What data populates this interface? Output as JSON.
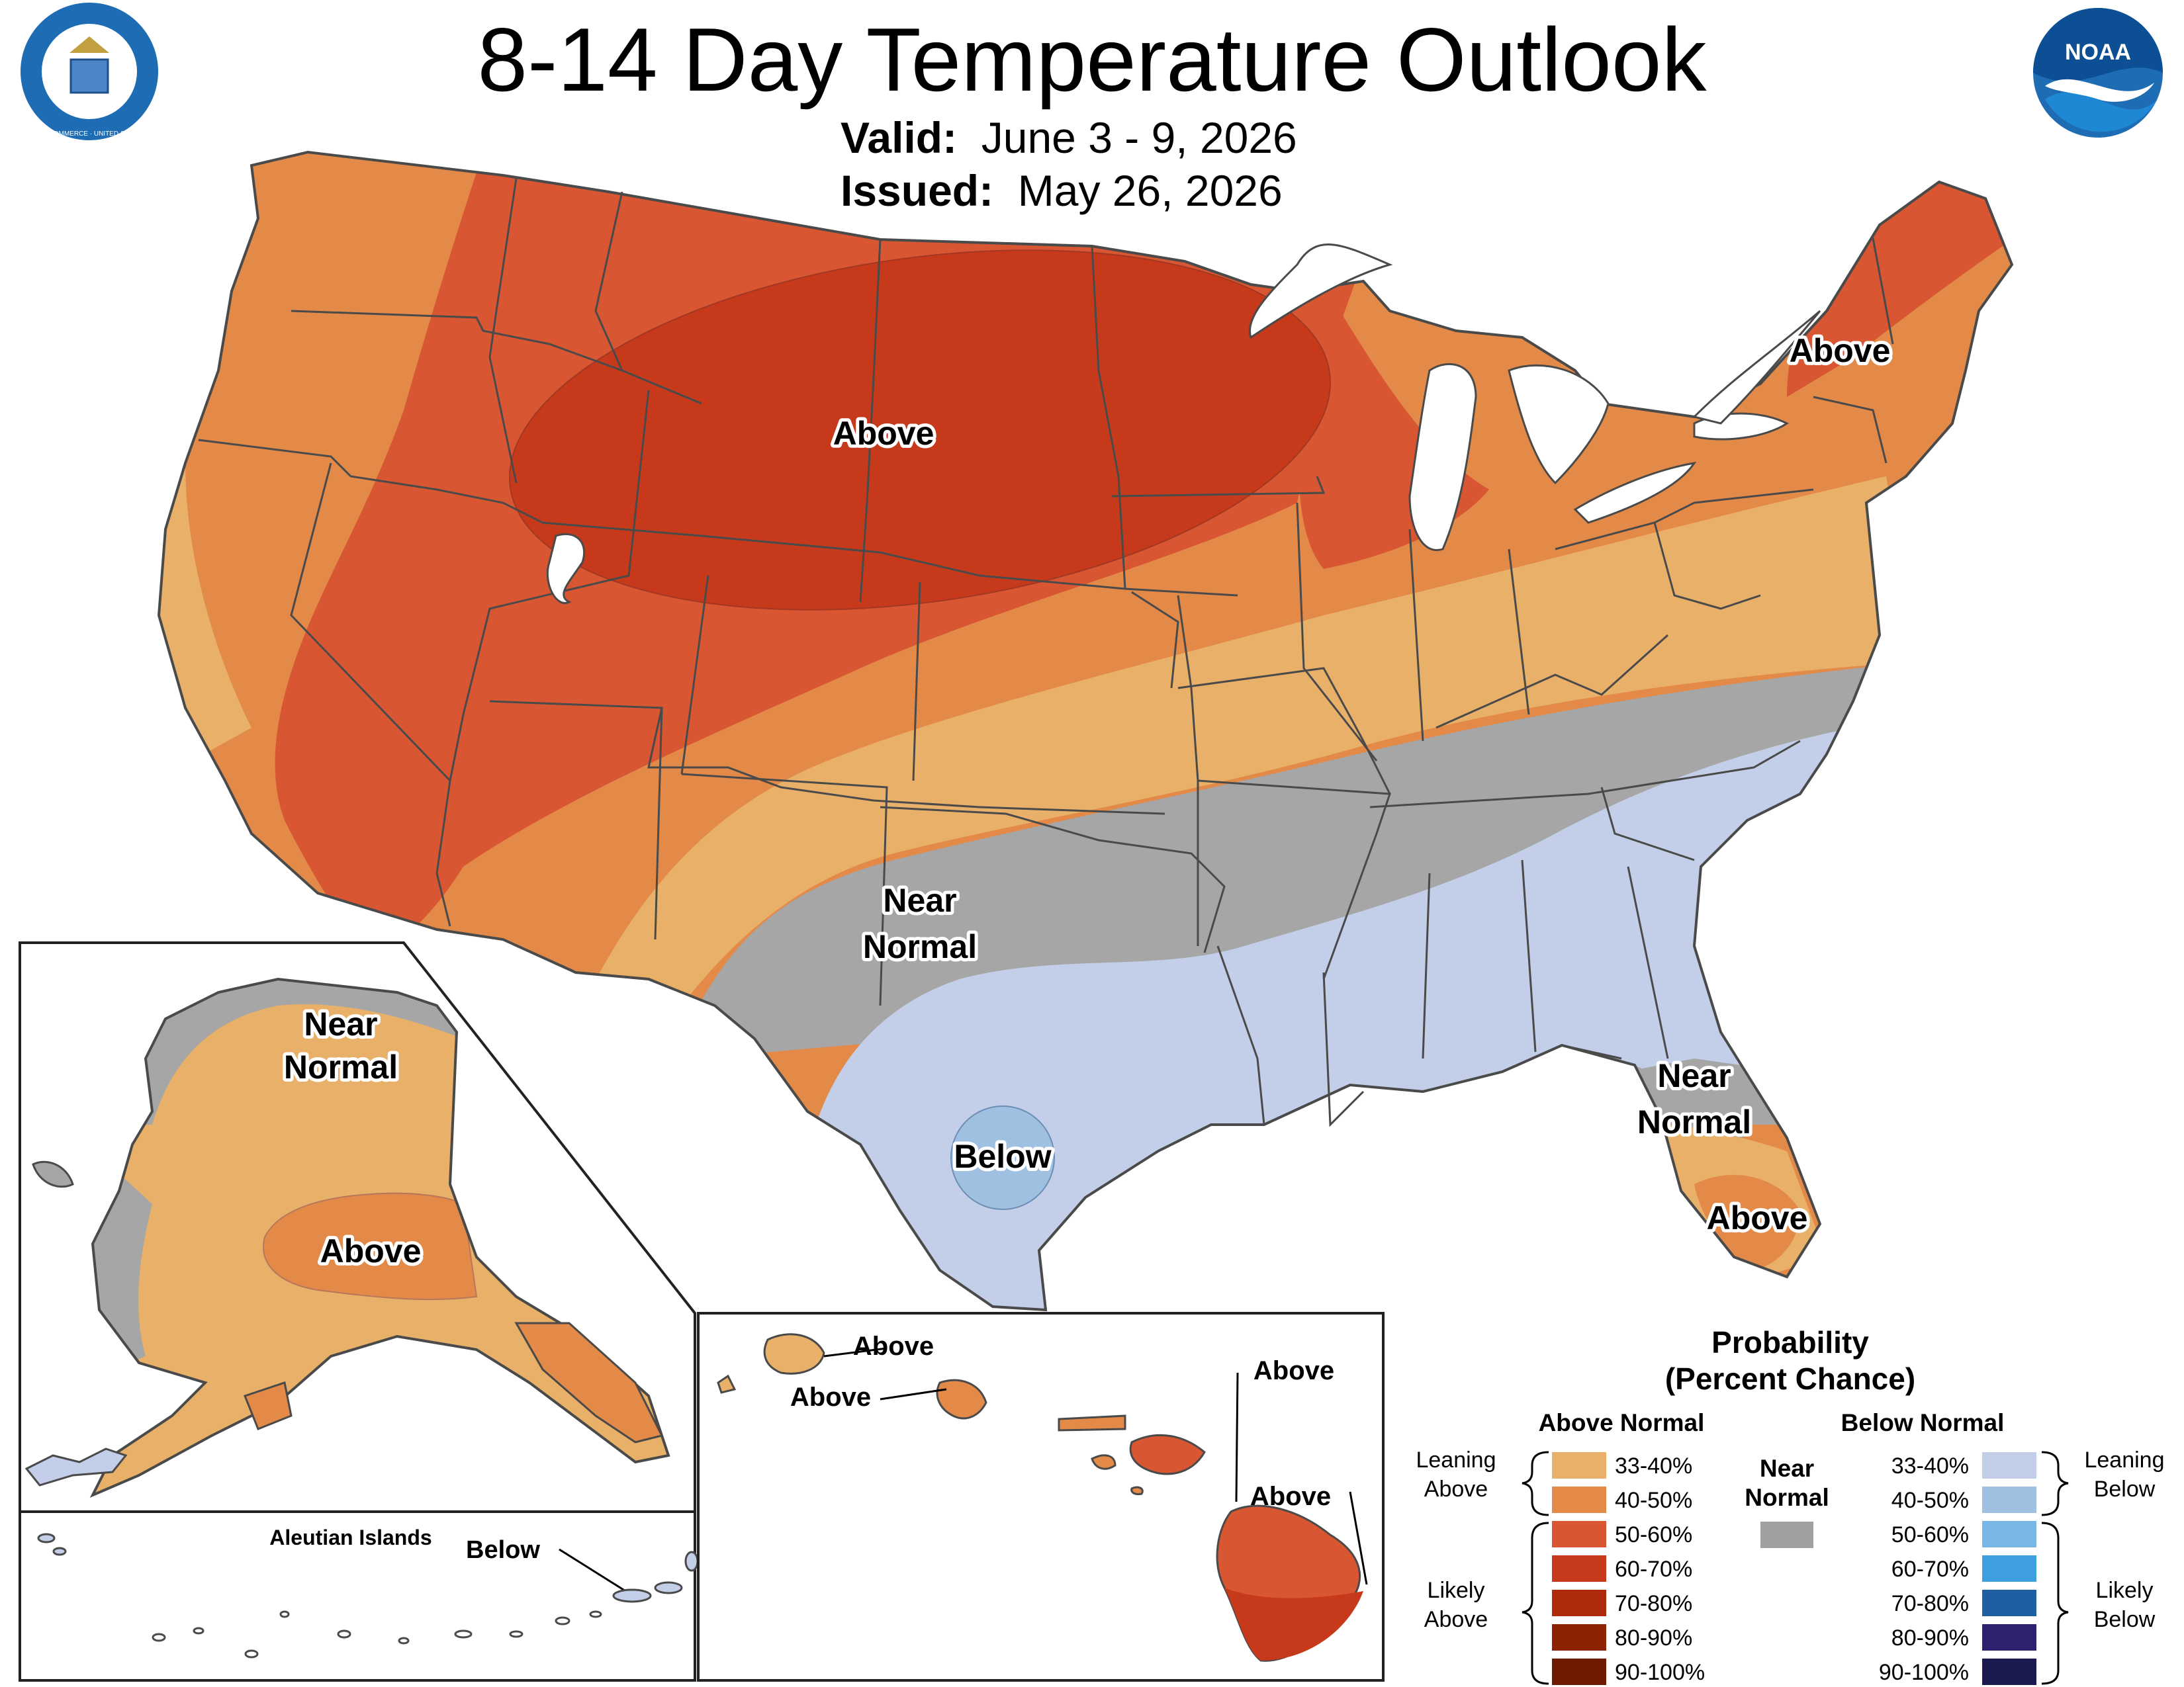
{
  "header": {
    "title": "8-14 Day Temperature Outlook",
    "valid_label": "Valid:",
    "valid_value": "June 3 - 9, 2026",
    "issued_label": "Issued:",
    "issued_value": "May 26, 2026",
    "left_logo_text": "DEPARTMENT OF COMMERCE · UNITED STATES OF AMERICA",
    "right_logo_text": "NOAA"
  },
  "map_labels": {
    "conus_above_north": "Above",
    "conus_above_northeast": "Above",
    "conus_near_normal": "Near\nNormal",
    "conus_below_texas": "Below",
    "conus_near_normal_florida": "Near\nNormal",
    "conus_above_florida": "Above",
    "alaska_near_normal": "Near\nNormal",
    "alaska_above": "Above",
    "aleutian_title": "Aleutian Islands",
    "aleutian_below": "Below",
    "hawaii_above_1": "Above",
    "hawaii_above_2": "Above",
    "hawaii_above_3": "Above",
    "hawaii_above_4": "Above"
  },
  "legend": {
    "title_line1": "Probability",
    "title_line2": "(Percent Chance)",
    "above_header": "Above Normal",
    "below_header": "Below Normal",
    "near_header_1": "Near",
    "near_header_2": "Normal",
    "leaning_above_1": "Leaning",
    "leaning_above_2": "Above",
    "likely_above_1": "Likely",
    "likely_above_2": "Above",
    "leaning_below_1": "Leaning",
    "leaning_below_2": "Below",
    "likely_below_1": "Likely",
    "likely_below_2": "Below",
    "above_bins": [
      {
        "label": "33-40%",
        "color": "#E8B068"
      },
      {
        "label": "40-50%",
        "color": "#E38A49"
      },
      {
        "label": "50-60%",
        "color": "#D95633"
      },
      {
        "label": "60-70%",
        "color": "#C63A1B"
      },
      {
        "label": "70-80%",
        "color": "#AE2A0A"
      },
      {
        "label": "80-90%",
        "color": "#8E2204"
      },
      {
        "label": "90-100%",
        "color": "#6E1A00"
      }
    ],
    "below_bins": [
      {
        "label": "33-40%",
        "color": "#C3CEE8"
      },
      {
        "label": "40-50%",
        "color": "#A0C0E1"
      },
      {
        "label": "50-60%",
        "color": "#78B7E5"
      },
      {
        "label": "60-70%",
        "color": "#3E9FDF"
      },
      {
        "label": "70-80%",
        "color": "#1D5FA2"
      },
      {
        "label": "80-90%",
        "color": "#2E2270"
      },
      {
        "label": "90-100%",
        "color": "#1B1A4F"
      }
    ],
    "near_normal_color": "#A0A0A0"
  }
}
